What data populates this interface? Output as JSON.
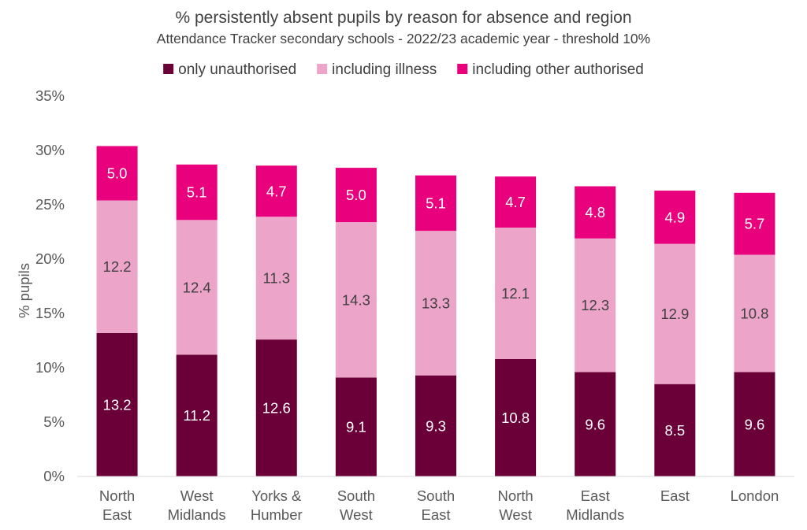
{
  "chart_data": {
    "type": "bar",
    "stacked": true,
    "title": "% persistently absent pupils by reason for absence and region",
    "subtitle": "Attendance Tracker secondary schools - 2022/23 academic year - threshold 10%",
    "xlabel": "",
    "ylabel": "% pupils",
    "ylim": [
      0,
      35
    ],
    "yticks": [
      "0%",
      "5%",
      "10%",
      "15%",
      "20%",
      "25%",
      "30%",
      "35%"
    ],
    "grid": false,
    "legend_position": "top",
    "categories": [
      [
        "North",
        "East"
      ],
      [
        "West",
        "Midlands"
      ],
      [
        "Yorks &",
        "Humber"
      ],
      [
        "South",
        "West"
      ],
      [
        "South",
        "East"
      ],
      [
        "North",
        "West"
      ],
      [
        "East",
        "Midlands"
      ],
      [
        "East"
      ],
      [
        "London"
      ]
    ],
    "series": [
      {
        "name": "only unauthorised",
        "color": "#6b0039",
        "label_color": "#ffffff",
        "values": [
          13.2,
          11.2,
          12.6,
          9.1,
          9.3,
          10.8,
          9.6,
          8.5,
          9.6
        ]
      },
      {
        "name": "including illness",
        "color": "#eda4c9",
        "label_color": "#404040",
        "values": [
          12.2,
          12.4,
          11.3,
          14.3,
          13.3,
          12.1,
          12.3,
          12.9,
          10.8
        ]
      },
      {
        "name": "including other authorised",
        "color": "#e8007d",
        "label_color": "#ffffff",
        "values": [
          5.0,
          5.1,
          4.7,
          5.0,
          5.1,
          4.7,
          4.8,
          4.9,
          5.7
        ]
      }
    ]
  }
}
